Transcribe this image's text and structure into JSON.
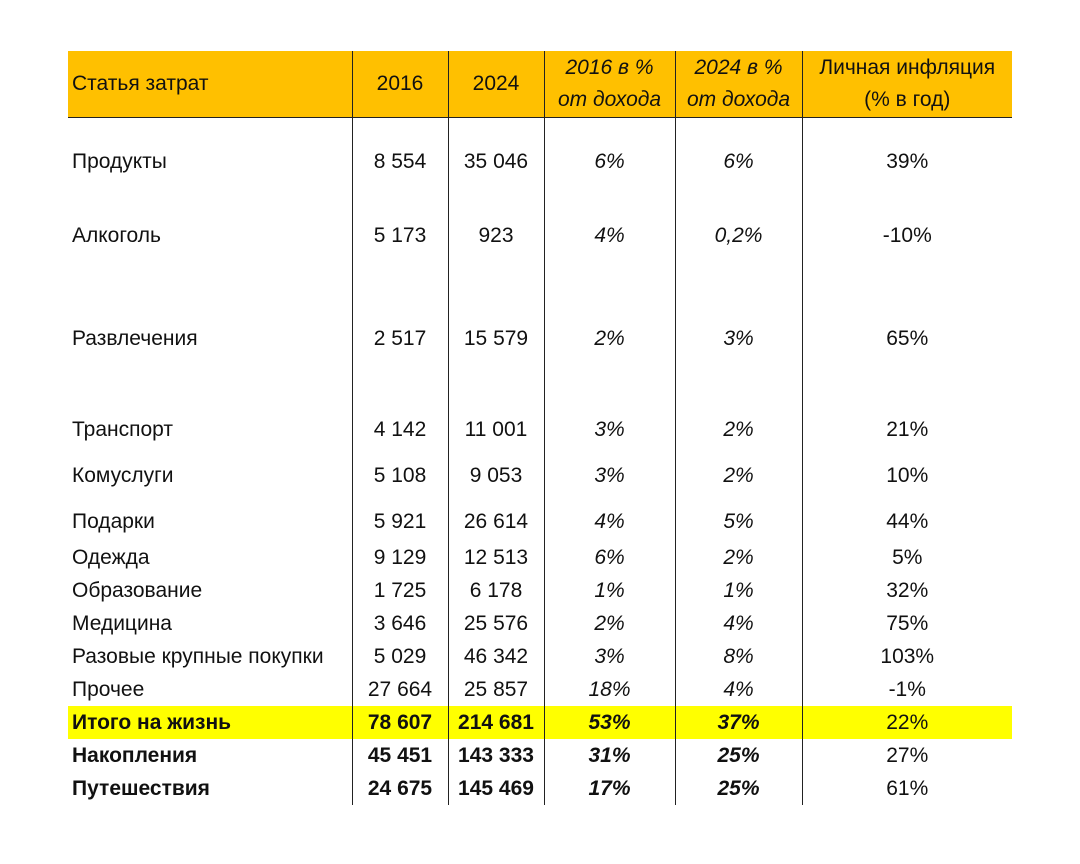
{
  "header": {
    "item": "Статья затрат",
    "y2016": "2016",
    "y2024": "2024",
    "pct2016_line1": "2016 в %",
    "pct2016_line2": "от дохода",
    "pct2024_line1": "2024 в %",
    "pct2024_line2": "от дохода",
    "infl_line1": "Личная инфляция",
    "infl_line2": "(% в год)"
  },
  "rows": [
    {
      "name": "Продукты",
      "v2016": "8 554",
      "v2024": "35 046",
      "p2016": "6%",
      "p2024": "6%",
      "infl": "39%"
    },
    {
      "name": "Алкоголь",
      "v2016": "5 173",
      "v2024": "923",
      "p2016": "4%",
      "p2024": "0,2%",
      "infl": "-10%"
    },
    {
      "name": "Развлечения",
      "v2016": "2 517",
      "v2024": "15 579",
      "p2016": "2%",
      "p2024": "3%",
      "infl": "65%"
    },
    {
      "name": "Транспорт",
      "v2016": "4 142",
      "v2024": "11 001",
      "p2016": "3%",
      "p2024": "2%",
      "infl": "21%"
    },
    {
      "name": "Комуслуги",
      "v2016": "5 108",
      "v2024": "9 053",
      "p2016": "3%",
      "p2024": "2%",
      "infl": "10%"
    },
    {
      "name": "Подарки",
      "v2016": "5 921",
      "v2024": "26 614",
      "p2016": "4%",
      "p2024": "5%",
      "infl": "44%"
    },
    {
      "name": "Одежда",
      "v2016": "9 129",
      "v2024": "12 513",
      "p2016": "6%",
      "p2024": "2%",
      "infl": "5%"
    },
    {
      "name": "Образование",
      "v2016": "1 725",
      "v2024": "6 178",
      "p2016": "1%",
      "p2024": "1%",
      "infl": "32%"
    },
    {
      "name": "Медицина",
      "v2016": "3 646",
      "v2024": "25 576",
      "p2016": "2%",
      "p2024": "4%",
      "infl": "75%"
    },
    {
      "name": "Разовые крупные покупки",
      "v2016": "5 029",
      "v2024": "46 342",
      "p2016": "3%",
      "p2024": "8%",
      "infl": "103%"
    },
    {
      "name": "Прочее",
      "v2016": "27 664",
      "v2024": "25 857",
      "p2016": "18%",
      "p2024": "4%",
      "infl": "-1%"
    },
    {
      "name": "Итого на жизнь",
      "v2016": "78 607",
      "v2024": "214 681",
      "p2016": "53%",
      "p2024": "37%",
      "infl": "22%"
    },
    {
      "name": "Накопления",
      "v2016": "45 451",
      "v2024": "143 333",
      "p2016": "31%",
      "p2024": "25%",
      "infl": "27%"
    },
    {
      "name": "Путешествия",
      "v2016": "24 675",
      "v2024": "145 469",
      "p2016": "17%",
      "p2024": "25%",
      "infl": "61%"
    }
  ],
  "colors": {
    "header_fill": "#ffc000",
    "total_highlight": "#ffff00"
  }
}
